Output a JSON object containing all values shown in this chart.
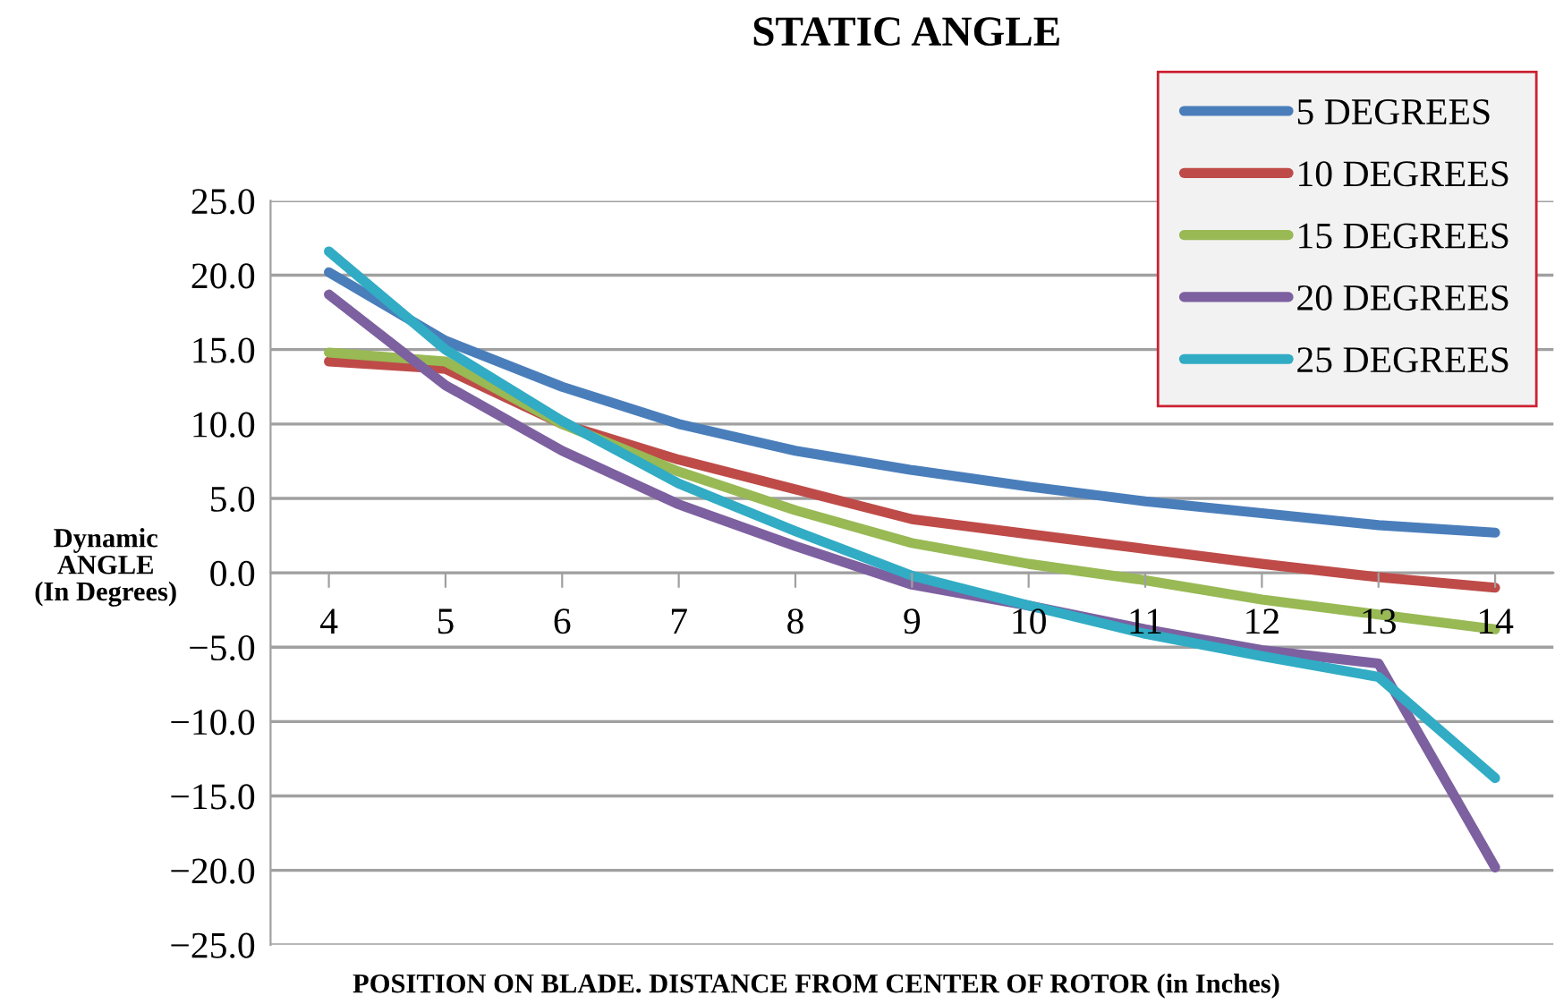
{
  "chart_data": {
    "type": "line",
    "title": "STATIC ANGLE",
    "xlabel": "POSITION ON BLADE. DISTANCE FROM CENTER OF ROTOR (in Inches)",
    "ylabel": "Dynamic\nANGLE\n(In Degrees)",
    "categories": [
      "4",
      "5",
      "6",
      "7",
      "8",
      "9",
      "10",
      "11",
      "12",
      "13",
      "14"
    ],
    "series": [
      {
        "name": "5 DEGREES",
        "color": "#4a7ebb",
        "values": [
          20.2,
          15.6,
          12.5,
          10.0,
          8.2,
          6.9,
          5.8,
          4.8,
          4.0,
          3.2,
          2.7
        ]
      },
      {
        "name": "10 DEGREES",
        "color": "#be4b48",
        "values": [
          14.2,
          13.7,
          10.0,
          7.6,
          5.6,
          3.6,
          2.6,
          1.6,
          0.6,
          -0.3,
          -1.0
        ]
      },
      {
        "name": "15 DEGREES",
        "color": "#98b954",
        "values": [
          14.8,
          14.2,
          10.0,
          6.8,
          4.2,
          2.0,
          0.6,
          -0.5,
          -1.8,
          -2.8,
          -3.8
        ]
      },
      {
        "name": "20 DEGREES",
        "color": "#7d60a0",
        "values": [
          18.7,
          12.6,
          8.2,
          4.6,
          1.8,
          -0.8,
          -2.2,
          -3.8,
          -5.2,
          -6.1,
          -19.8
        ]
      },
      {
        "name": "25 DEGREES",
        "color": "#31acc4",
        "values": [
          21.6,
          15.0,
          10.2,
          6.0,
          2.8,
          -0.2,
          -2.2,
          -4.1,
          -5.6,
          -7.0,
          -13.8
        ]
      }
    ],
    "ylim": [
      -25,
      25
    ],
    "yticks": [
      {
        "value": 25,
        "label": "25.0"
      },
      {
        "value": 20,
        "label": "20.0"
      },
      {
        "value": 15,
        "label": "15.0"
      },
      {
        "value": 10,
        "label": "10.0"
      },
      {
        "value": 5,
        "label": "5.0"
      },
      {
        "value": 0,
        "label": "0.0"
      },
      {
        "value": -5,
        "label": "−5.0"
      },
      {
        "value": -10,
        "label": "−10.0"
      },
      {
        "value": -15,
        "label": "−15.0"
      },
      {
        "value": -20,
        "label": "−20.0"
      },
      {
        "value": -25,
        "label": "−25.0"
      }
    ],
    "grid": "y",
    "legend": "top right",
    "marker": "none",
    "line_style": "solid"
  }
}
